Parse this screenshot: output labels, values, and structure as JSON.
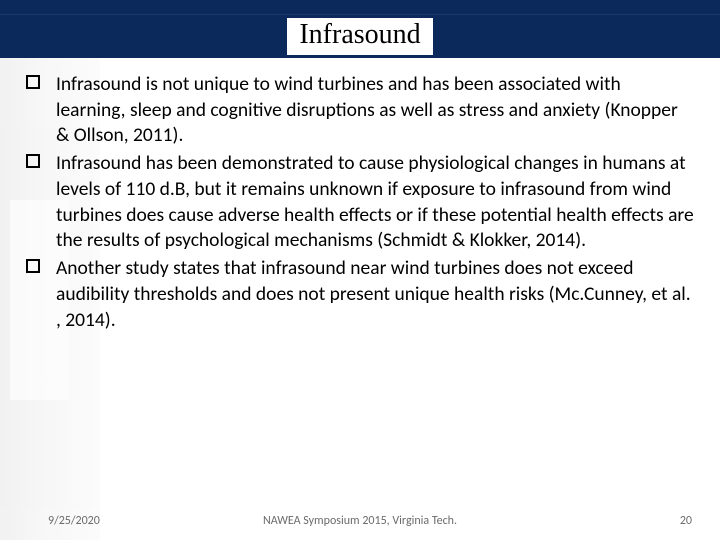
{
  "colors": {
    "title_bar_bg": "#0b2a5b",
    "title_inner_bg": "#ffffff",
    "title_text": "#000000",
    "body_text": "#000000",
    "footer_text": "#6b6b6b",
    "slide_bg": "#ffffff"
  },
  "typography": {
    "title_font": "Times New Roman",
    "title_fontsize_pt": 24,
    "body_font": "Calibri",
    "body_fontsize_pt": 18,
    "footer_fontsize_pt": 10
  },
  "title": "Infrasound",
  "bullets": [
    "Infrasound is not unique to wind turbines and has been associated with learning, sleep and cognitive disruptions as well as stress and anxiety (Knopper & Ollson, 2011).",
    "Infrasound has been demonstrated to cause physiological changes in humans at levels of 110 d.B, but it remains unknown if exposure to infrasound from wind turbines does cause adverse health effects or if these potential health effects are the results of psychological mechanisms (Schmidt & Klokker, 2014).",
    "Another study states that infrasound near wind turbines does not exceed audibility thresholds and does not present unique health risks (Mc.Cunney, et al. , 2014)."
  ],
  "footer": {
    "date": "9/25/2020",
    "center": "NAWEA Symposium 2015, Virginia Tech.",
    "page": "20"
  }
}
